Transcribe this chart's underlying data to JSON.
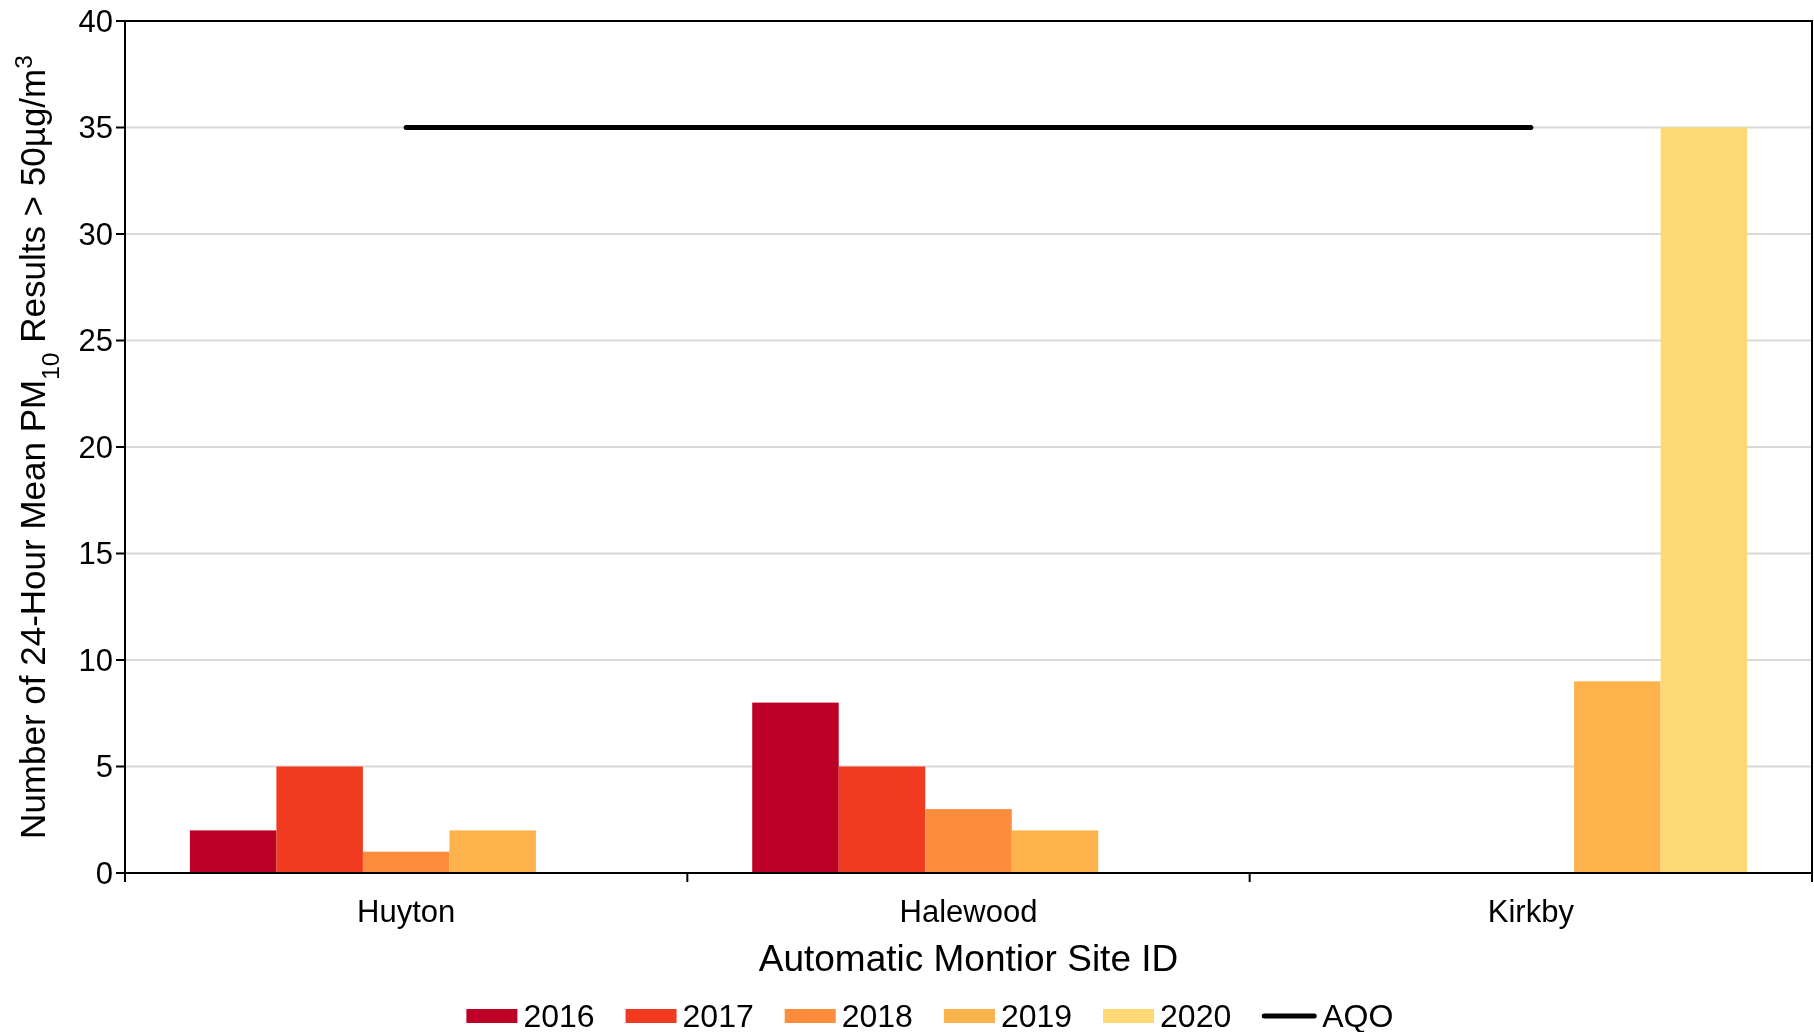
{
  "chart_data": {
    "type": "bar",
    "xlabel": "Automatic Montior Site ID",
    "ylabel": "Number of 24-Hour Mean PM$_{10}$ Results > 50µg/m$^{3}$",
    "categories": [
      "Huyton",
      "Halewood",
      "Kirkby"
    ],
    "series": [
      {
        "name": "2016",
        "color": "#bd0026",
        "values": [
          2,
          8,
          null
        ]
      },
      {
        "name": "2017",
        "color": "#f03b20",
        "values": [
          5,
          5,
          null
        ]
      },
      {
        "name": "2018",
        "color": "#fd8d3c",
        "values": [
          1,
          3,
          null
        ]
      },
      {
        "name": "2019",
        "color": "#feb24c",
        "values": [
          2,
          2,
          9
        ]
      },
      {
        "name": "2020",
        "color": "#fed976",
        "values": [
          null,
          null,
          35
        ]
      },
      {
        "name": "AQO",
        "type": "line",
        "color": "#000000",
        "values": [
          35,
          35,
          35
        ]
      }
    ],
    "ylim": [
      0,
      40
    ],
    "yticks": [
      0,
      5,
      10,
      15,
      20,
      25,
      30,
      35,
      40
    ],
    "grid": "y",
    "legend": "bottom"
  }
}
